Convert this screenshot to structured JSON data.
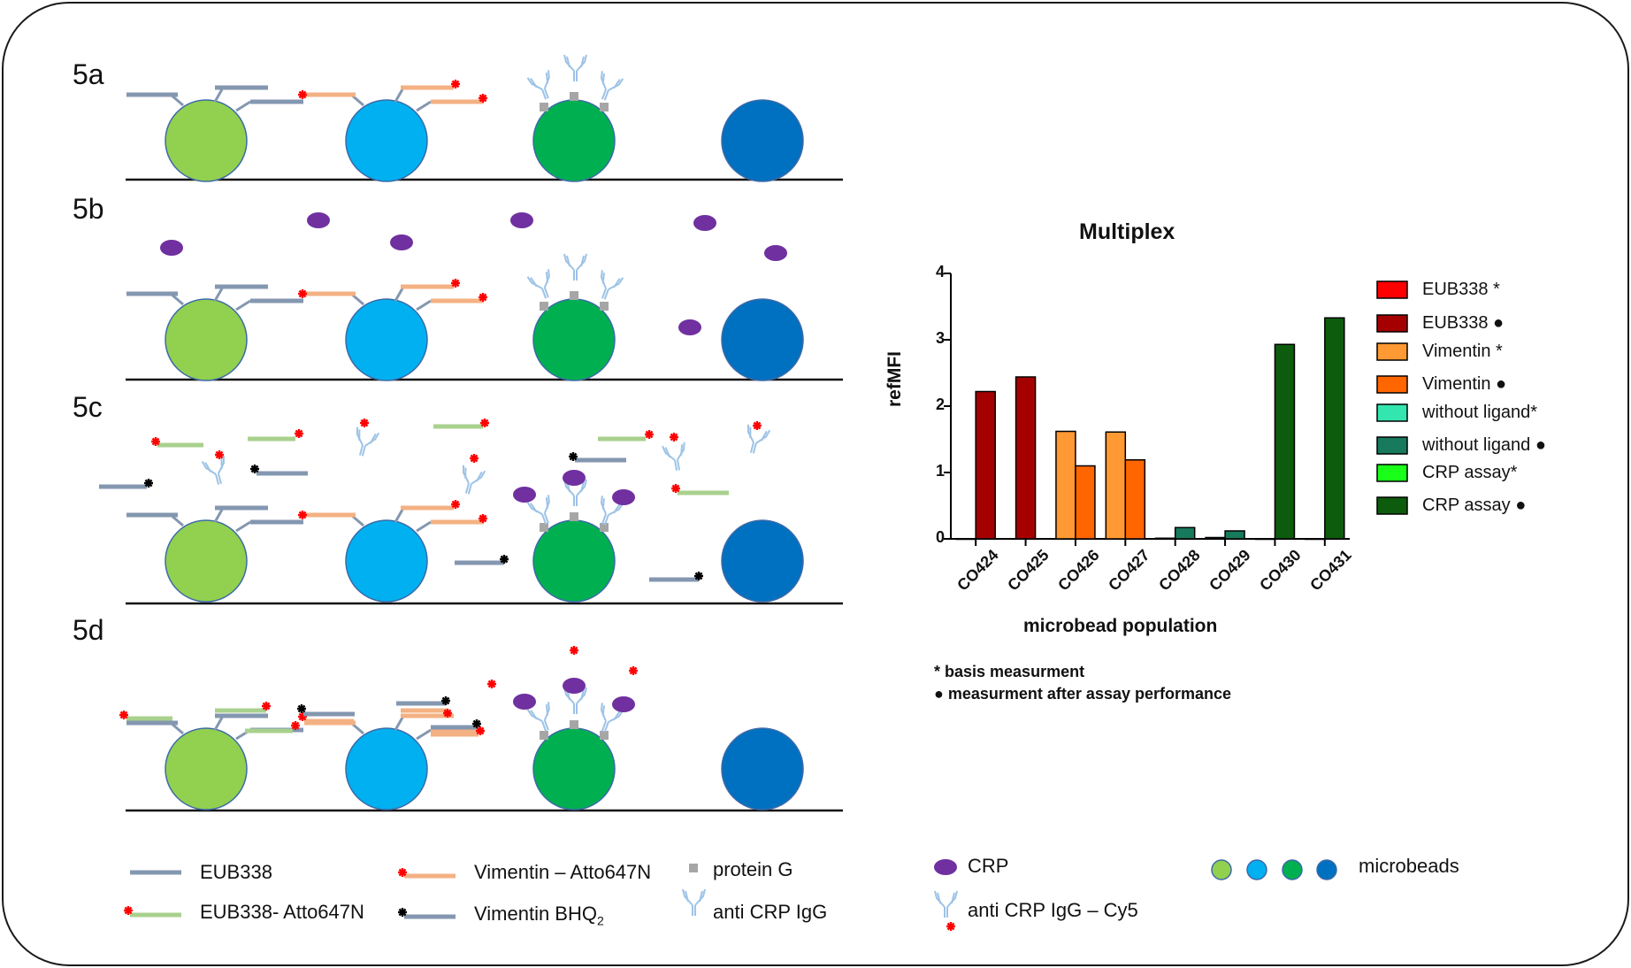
{
  "panels": [
    "5a",
    "5b",
    "5c",
    "5d"
  ],
  "legend": {
    "eub338": "EUB338",
    "eub338_atto": "EUB338- Atto647N",
    "vimentin_atto": "Vimentin – Atto647N",
    "vimentin_bhq": "Vimentin BHQ",
    "vimentin_bhq_sub": "2",
    "protein_g": "protein G",
    "anti_crp": "anti CRP IgG",
    "crp": "CRP",
    "anti_crp_cy5": "anti CRP IgG – Cy5",
    "microbeads": "microbeads"
  },
  "colors": {
    "bead1": "#92d050",
    "bead2": "#00b0f0",
    "bead3": "#00b050",
    "bead4": "#0070c0",
    "eub338_strand": "#8497b0",
    "vimentin_strand": "#f4b183",
    "eub338_atto_strand": "#a9d18e",
    "crp": "#7030a0",
    "antibody": "#9dc3e6",
    "protein_g": "#a6a6a6",
    "star_red": "#ff0000",
    "star_black": "#000000"
  },
  "chart_data": {
    "type": "bar",
    "title": "Multiplex",
    "xlabel": "microbead population",
    "ylabel": "refMFI",
    "ylim": [
      0,
      4
    ],
    "yticks": [
      "0",
      "1",
      "2",
      "3",
      "4"
    ],
    "categories": [
      "CO424",
      "CO425",
      "CO426",
      "CO427",
      "CO428",
      "CO429",
      "CO430",
      "CO431"
    ],
    "series": [
      {
        "name": "EUB338 *",
        "color": "#ff0000",
        "values": [
          0,
          null,
          null,
          null,
          null,
          null,
          null,
          null
        ]
      },
      {
        "name": "EUB338 ●",
        "color": "#a50000",
        "values": [
          2.22,
          2.44,
          null,
          null,
          null,
          null,
          null,
          null
        ]
      },
      {
        "name": "Vimentin *",
        "color": "#ff9933",
        "values": [
          null,
          null,
          1.62,
          1.61,
          null,
          null,
          null,
          null
        ]
      },
      {
        "name": "Vimentin ●",
        "color": "#ff6600",
        "values": [
          null,
          null,
          1.1,
          1.19,
          null,
          null,
          null,
          null
        ]
      },
      {
        "name": "without ligand*",
        "color": "#33e6b0",
        "values": [
          null,
          null,
          null,
          null,
          0.01,
          0.02,
          null,
          null
        ]
      },
      {
        "name": "without ligand ●",
        "color": "#177a5c",
        "values": [
          null,
          null,
          null,
          null,
          0.17,
          0.12,
          null,
          null
        ]
      },
      {
        "name": "CRP assay*",
        "color": "#1aff1a",
        "values": [
          null,
          null,
          null,
          null,
          null,
          null,
          0,
          0
        ]
      },
      {
        "name": "CRP assay ●",
        "color": "#0d5c0d",
        "values": [
          null,
          null,
          null,
          null,
          null,
          null,
          2.93,
          3.33
        ]
      }
    ],
    "legend_position": "right",
    "notes": [
      "* basis measurment",
      "● measurment after assay performance"
    ]
  }
}
